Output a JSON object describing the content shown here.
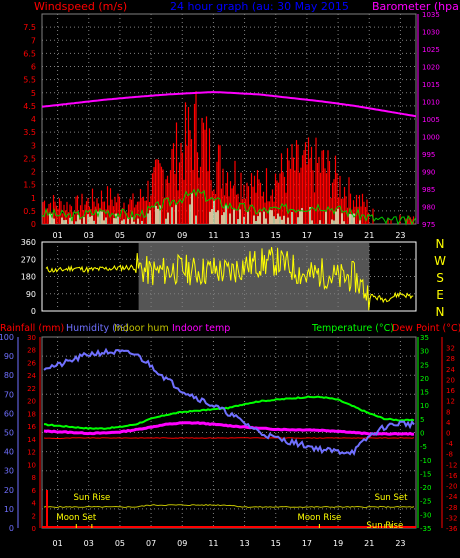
{
  "colors": {
    "windspeed": "#ff0000",
    "gust_bars": "#ff0000",
    "avg_wind": "#00cc00",
    "calm_bars": "#ccffcc",
    "barometer": "#ff00ff",
    "direction": "#ffff00",
    "rainfall": "#ff0000",
    "humidity": "#7070ff",
    "indoor_hum": "#c0c000",
    "indoor_temp": "#ff00ff",
    "temperature": "#00ff00",
    "dew_point": "#ff0000",
    "title": "#0000ff",
    "grid": "#808080"
  },
  "chart_data": [
    {
      "type": "line",
      "title": "24 hour graph (au: 30 May 2015",
      "left_axis_label": "Windspeed (m/s)",
      "right_axis_label": "Barometer (hpa)",
      "x_ticks": [
        "01",
        "03",
        "05",
        "07",
        "09",
        "11",
        "13",
        "15",
        "17",
        "19",
        "21",
        "23"
      ],
      "left_ticks": [
        "0",
        "0.5",
        "1",
        "1.5",
        "2",
        "2.5",
        "3",
        "3.5",
        "4",
        "4.5",
        "5",
        "5.5",
        "6",
        "6.5",
        "7",
        "7.5"
      ],
      "right_ticks": [
        "975",
        "980",
        "985",
        "990",
        "995",
        "1000",
        "1005",
        "1010",
        "1015",
        "1020",
        "1025",
        "1030",
        "1035"
      ],
      "ylim_left": [
        0,
        8.0
      ],
      "ylim_right": [
        975,
        1035
      ],
      "x_hours": [
        0,
        2,
        4,
        6,
        8,
        10,
        11,
        12,
        14,
        16,
        18,
        20,
        22,
        24
      ],
      "series": [
        {
          "name": "Barometer (hpa)",
          "axis": "right",
          "values": [
            1008.5,
            1009.5,
            1010.5,
            1011.3,
            1012.0,
            1012.5,
            1012.7,
            1012.5,
            1012.0,
            1011.0,
            1010.0,
            1008.8,
            1007.3,
            1005.8
          ]
        },
        {
          "name": "Windspeed (m/s)",
          "axis": "left",
          "values": [
            1.0,
            0.8,
            1.2,
            0.9,
            2.5,
            4.3,
            2.8,
            2.3,
            1.6,
            2.5,
            2.6,
            1.2,
            0.3,
            0.3
          ]
        },
        {
          "axis": "left",
          "values": [
            0.4,
            0.3,
            0.5,
            0.3,
            0.8,
            1.2,
            0.9,
            0.7,
            0.5,
            0.6,
            0.7,
            0.4,
            0.1,
            0.1
          ]
        }
      ]
    },
    {
      "type": "scatter",
      "axis_label": "NWSEN",
      "left_ticks": [
        "360",
        "270",
        "180",
        "90",
        "0"
      ],
      "ylim": [
        0,
        360
      ],
      "x_hours": [
        0,
        1,
        2,
        3,
        4,
        5,
        6,
        7,
        8,
        9,
        10,
        11,
        12,
        13,
        14,
        15,
        16,
        17,
        18,
        19,
        20,
        21,
        22,
        23,
        24
      ],
      "values": [
        220,
        210,
        225,
        215,
        220,
        225,
        230,
        200,
        210,
        220,
        205,
        215,
        200,
        240,
        250,
        260,
        230,
        180,
        200,
        170,
        180,
        80,
        60,
        90,
        70
      ]
    },
    {
      "type": "line",
      "legend": [
        "Rainfall (mm)",
        "Humidity (%)",
        "Indoor hum",
        "Indoor temp",
        "Temperature (°C)",
        "Dew Point (°C)"
      ],
      "rain_ticks": [
        "0",
        "2",
        "4",
        "6",
        "8",
        "10",
        "12",
        "14",
        "16",
        "18",
        "20",
        "22",
        "24",
        "26",
        "28",
        "30"
      ],
      "hum_ticks": [
        "0",
        "10",
        "20",
        "30",
        "40",
        "50",
        "60",
        "70",
        "80",
        "90",
        "100"
      ],
      "temp_ticks": [
        "-35",
        "-30",
        "-25",
        "-20",
        "-15",
        "-10",
        "-5",
        "0",
        "5",
        "10",
        "15",
        "20",
        "25",
        "30",
        "35"
      ],
      "dew_ticks": [
        "-36",
        "-34",
        "-32",
        "-30",
        "-28",
        "-26",
        "-24",
        "-22",
        "-20",
        "-18",
        "-16",
        "-14",
        "-12",
        "-10",
        "-8",
        "-6",
        "-4",
        "-2",
        "0",
        "2",
        "4",
        "6",
        "8",
        "10",
        "12",
        "14",
        "16",
        "18",
        "20",
        "22",
        "24",
        "26",
        "28",
        "30",
        "32",
        "34"
      ],
      "ylim_humidity": [
        0,
        100
      ],
      "ylim_temperature": [
        -35,
        35
      ],
      "x_ticks": [
        "01",
        "03",
        "05",
        "07",
        "09",
        "11",
        "13",
        "15",
        "17",
        "19",
        "21",
        "23"
      ],
      "x_hours": [
        0,
        1,
        2,
        3,
        4,
        5,
        6,
        7,
        8,
        9,
        10,
        11,
        12,
        13,
        14,
        15,
        16,
        17,
        18,
        19,
        20,
        21,
        22,
        23,
        24
      ],
      "series": [
        {
          "name": "Humidity (%)",
          "axis": "humidity",
          "values": [
            84,
            85,
            88,
            91,
            92,
            92,
            91,
            85,
            78,
            72,
            68,
            64,
            60,
            55,
            50,
            47,
            45,
            43,
            41,
            40,
            40,
            48,
            53,
            55,
            54
          ]
        },
        {
          "name": "Temperature (°C)",
          "axis": "temperature",
          "values": [
            3,
            2.5,
            2,
            1.5,
            1.5,
            2,
            3,
            5,
            6.5,
            7.5,
            8,
            8.5,
            9,
            10.5,
            11.5,
            12,
            12.5,
            13,
            13,
            12,
            9.5,
            7,
            5,
            4.5,
            4.5
          ]
        },
        {
          "name": "Indoor temp",
          "axis": "temperature",
          "values": [
            0.5,
            0.3,
            0,
            -0.3,
            -0.2,
            0.2,
            1,
            2,
            3,
            3.5,
            3.5,
            3,
            2.5,
            2,
            1.5,
            1.2,
            1,
            1,
            0.8,
            0.5,
            0,
            -0.5,
            -0.5,
            -0.5,
            -0.5
          ]
        },
        {
          "name": "Dew Point (°C)",
          "axis": "temperature",
          "values": [
            -2,
            -2.2,
            -2,
            -2,
            -2,
            -2,
            -2,
            -2,
            -2,
            -2,
            -2,
            -2,
            -2,
            -2,
            -2,
            -2,
            -2,
            -2,
            -2,
            -2,
            -2,
            -2,
            -2,
            -2,
            -2
          ]
        },
        {
          "name": "Indoor hum",
          "axis": "humidity",
          "values": [
            11,
            11,
            11,
            11,
            11,
            11,
            11,
            12,
            12,
            12,
            12,
            12,
            12,
            11,
            11,
            11,
            11,
            11,
            11,
            11,
            11,
            11,
            11,
            11,
            11
          ]
        },
        {
          "name": "Rainfall (mm)",
          "axis": "rain",
          "values": [
            0,
            0,
            0,
            0,
            0,
            0,
            0,
            0,
            0,
            0,
            0,
            0,
            0,
            0,
            0,
            0,
            0,
            0,
            0,
            0,
            0,
            0,
            0,
            0,
            0
          ]
        }
      ],
      "annotations": [
        {
          "label": "Sun Rise",
          "hour": 3.2,
          "row": "upper"
        },
        {
          "label": "Moon Set",
          "hour": 2.2,
          "row": "lower"
        },
        {
          "label": "Moon Rise",
          "hour": 17.8,
          "row": "lower"
        },
        {
          "label": "Sun Set",
          "hour": 22.4,
          "row": "upper"
        },
        {
          "label": "Sun Rise",
          "hour": 22.0,
          "row": "lower-right"
        }
      ]
    }
  ]
}
